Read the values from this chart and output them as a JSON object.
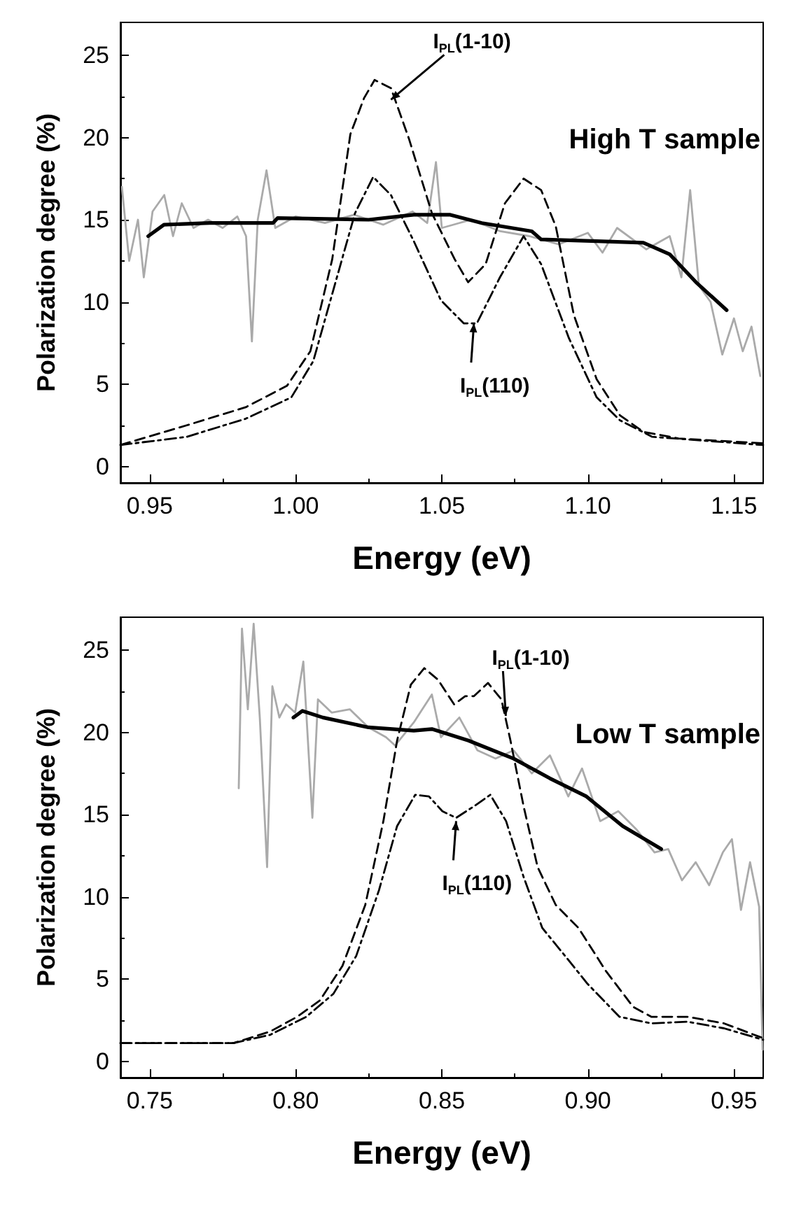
{
  "chart_data": [
    {
      "type": "line",
      "xlabel": "Energy (eV)",
      "ylabel": "Polarization degree (%)",
      "xlim": [
        0.94,
        1.16
      ],
      "xticks": [
        0.95,
        {
          "value": 1.0,
          "label": "1.00"
        },
        {
          "value": 1.05,
          "label": "1.05"
        },
        {
          "value": 1.1,
          "label": "1.10"
        },
        1.15
      ],
      "ylim": [
        -1,
        27
      ],
      "yticks": [
        0,
        5,
        10,
        15,
        20,
        25
      ],
      "annotations": [
        {
          "text": "I$_{PL}$(1-10)",
          "x": 1.0326,
          "y": 22.3
        },
        {
          "text": "I$_{PL}$(110)",
          "x": 1.061,
          "y": 8.7
        },
        "High T sample"
      ],
      "series": [
        {
          "color": "#aaaaaa",
          "line_style": "solid",
          "x": [
            0.9405,
            0.943,
            0.946,
            0.948,
            0.951,
            0.955,
            0.958,
            0.961,
            0.965,
            0.97,
            0.975,
            0.98,
            0.983,
            0.985,
            0.987,
            0.99,
            0.993,
            1.0,
            1.01,
            1.02,
            1.03,
            1.04,
            1.045,
            1.048,
            1.05,
            1.06,
            1.07,
            1.08,
            1.09,
            1.1,
            1.105,
            1.11,
            1.12,
            1.128,
            1.132,
            1.135,
            1.138,
            1.142,
            1.146,
            1.15,
            1.153,
            1.156,
            1.159
          ],
          "values": [
            17.0,
            12.5,
            15.0,
            11.5,
            15.5,
            16.5,
            14.0,
            16.0,
            14.5,
            15.0,
            14.5,
            15.2,
            14.0,
            7.6,
            15.0,
            18.0,
            14.5,
            15.2,
            14.8,
            15.3,
            14.7,
            15.5,
            14.8,
            18.5,
            14.5,
            15.0,
            14.3,
            14.0,
            13.5,
            14.2,
            13.0,
            14.5,
            13.2,
            14.0,
            11.5,
            16.8,
            11.0,
            10.0,
            6.8,
            9.0,
            7.0,
            8.5,
            5.5
          ]
        },
        {
          "color": "#000000",
          "line_style": "solid",
          "x": [
            0.9495,
            0.9549,
            0.9705,
            0.9922,
            0.9938,
            1.025,
            1.0404,
            1.0529,
            1.0637,
            1.0808,
            1.084,
            1.103,
            1.119,
            1.128,
            1.137,
            1.1475
          ],
          "values": [
            14.0,
            14.7,
            14.8,
            14.8,
            15.1,
            15.0,
            15.3,
            15.3,
            14.8,
            14.3,
            13.8,
            13.7,
            13.6,
            12.9,
            11.2,
            9.5
          ]
        },
        {
          "color": "#000000",
          "line_style": "dashed",
          "x": [
            0.94,
            0.9627,
            0.9829,
            0.997,
            1.005,
            1.0125,
            1.0187,
            1.0234,
            1.027,
            1.0326,
            1.0388,
            1.0466,
            1.0544,
            1.059,
            1.065,
            1.0716,
            1.078,
            1.084,
            1.089,
            1.0952,
            1.103,
            1.111,
            1.119,
            1.131,
            1.16
          ],
          "values": [
            1.3,
            2.5,
            3.6,
            4.9,
            7.0,
            12.6,
            20.2,
            22.4,
            23.5,
            23.0,
            19.9,
            15.4,
            12.6,
            11.2,
            12.3,
            16.0,
            17.5,
            16.8,
            14.6,
            9.2,
            5.3,
            3.1,
            2.1,
            1.7,
            1.4
          ]
        },
        {
          "color": "#000000",
          "line_style": "dashdot",
          "x": [
            0.94,
            0.9627,
            0.9829,
            0.9985,
            1.006,
            1.0141,
            1.0203,
            1.0265,
            1.0326,
            1.0404,
            1.0497,
            1.0575,
            1.062,
            1.0699,
            1.078,
            1.084,
            1.0935,
            1.103,
            1.111,
            1.122,
            1.16
          ],
          "values": [
            1.3,
            1.8,
            2.9,
            4.2,
            6.4,
            11.5,
            15.4,
            17.6,
            16.5,
            13.7,
            10.1,
            8.7,
            8.7,
            11.5,
            14.0,
            12.3,
            7.8,
            4.2,
            2.8,
            1.8,
            1.3
          ]
        }
      ]
    },
    {
      "type": "line",
      "xlabel": "Energy (eV)",
      "ylabel": "Polarization degree (%)",
      "xlim": [
        0.74,
        0.96
      ],
      "xticks": [
        0.75,
        {
          "value": 0.8,
          "label": "0.80"
        },
        0.85,
        {
          "value": 0.9,
          "label": "0.90"
        },
        0.95
      ],
      "ylim": [
        -1,
        27
      ],
      "yticks": [
        0,
        5,
        10,
        15,
        20,
        25
      ],
      "annotations": [
        {
          "text": "I$_{PL}$(1-10)",
          "x": 0.8719,
          "y": 21.0
        },
        {
          "text": "I$_{PL}$(110)",
          "x": 0.8549,
          "y": 14.6
        },
        "Low T sample"
      ],
      "series": [
        {
          "color": "#aaaaaa",
          "line_style": "solid",
          "x": [
            0.7805,
            0.7816,
            0.7836,
            0.7856,
            0.7877,
            0.7902,
            0.792,
            0.7944,
            0.7967,
            0.7998,
            0.8026,
            0.8057,
            0.8076,
            0.8123,
            0.8185,
            0.8249,
            0.8309,
            0.834,
            0.8404,
            0.8466,
            0.8497,
            0.856,
            0.8622,
            0.8684,
            0.8746,
            0.8808,
            0.887,
            0.8933,
            0.898,
            0.9042,
            0.9104,
            0.9166,
            0.9228,
            0.9275,
            0.9322,
            0.9369,
            0.9415,
            0.9462,
            0.9493,
            0.9524,
            0.9555,
            0.9586,
            0.9598
          ],
          "values": [
            16.6,
            26.3,
            21.4,
            26.6,
            20.9,
            11.8,
            22.8,
            20.9,
            21.7,
            21.2,
            24.3,
            14.8,
            22.0,
            21.2,
            21.4,
            20.3,
            19.7,
            19.2,
            20.6,
            22.3,
            19.7,
            20.9,
            18.9,
            18.4,
            18.9,
            17.5,
            18.6,
            16.1,
            17.8,
            14.6,
            15.2,
            14.1,
            12.7,
            12.9,
            11.0,
            12.1,
            10.7,
            12.7,
            13.5,
            9.2,
            12.1,
            9.4,
            0.7
          ]
        },
        {
          "color": "#000000",
          "line_style": "solid",
          "x": [
            0.7992,
            0.8023,
            0.8093,
            0.8249,
            0.8404,
            0.8466,
            0.8591,
            0.8746,
            0.887,
            0.8995,
            0.9119,
            0.9251
          ],
          "values": [
            20.9,
            21.3,
            20.9,
            20.3,
            20.1,
            20.2,
            19.5,
            18.4,
            17.2,
            16.1,
            14.3,
            12.9
          ]
        },
        {
          "color": "#000000",
          "line_style": "dashed",
          "x": [
            0.74,
            0.7787,
            0.7912,
            0.8005,
            0.8083,
            0.816,
            0.8238,
            0.83,
            0.8347,
            0.8394,
            0.844,
            0.8487,
            0.8542,
            0.858,
            0.861,
            0.8658,
            0.8704,
            0.8735,
            0.878,
            0.8828,
            0.889,
            0.8968,
            0.9061,
            0.9155,
            0.9217,
            0.9341,
            0.9466,
            0.96
          ],
          "values": [
            1.1,
            1.1,
            1.8,
            2.7,
            3.7,
            5.8,
            9.5,
            14.6,
            19.5,
            22.9,
            23.9,
            23.2,
            21.7,
            22.2,
            22.2,
            23.0,
            22.0,
            19.5,
            15.5,
            11.8,
            9.5,
            8.1,
            5.5,
            3.3,
            2.7,
            2.7,
            2.3,
            1.4
          ]
        },
        {
          "color": "#000000",
          "line_style": "dashdot",
          "x": [
            0.74,
            0.7787,
            0.7912,
            0.8036,
            0.8129,
            0.8207,
            0.8285,
            0.8347,
            0.8409,
            0.8456,
            0.8502,
            0.8549,
            0.861,
            0.8666,
            0.872,
            0.878,
            0.8844,
            0.8922,
            0.8999,
            0.9108,
            0.9217,
            0.9341,
            0.9466,
            0.96
          ],
          "values": [
            1.1,
            1.1,
            1.6,
            2.7,
            4.1,
            6.4,
            10.4,
            14.3,
            16.2,
            16.1,
            15.2,
            14.8,
            15.5,
            16.2,
            14.6,
            11.2,
            8.1,
            6.4,
            4.7,
            2.7,
            2.3,
            2.4,
            2.0,
            1.3
          ]
        }
      ]
    }
  ]
}
